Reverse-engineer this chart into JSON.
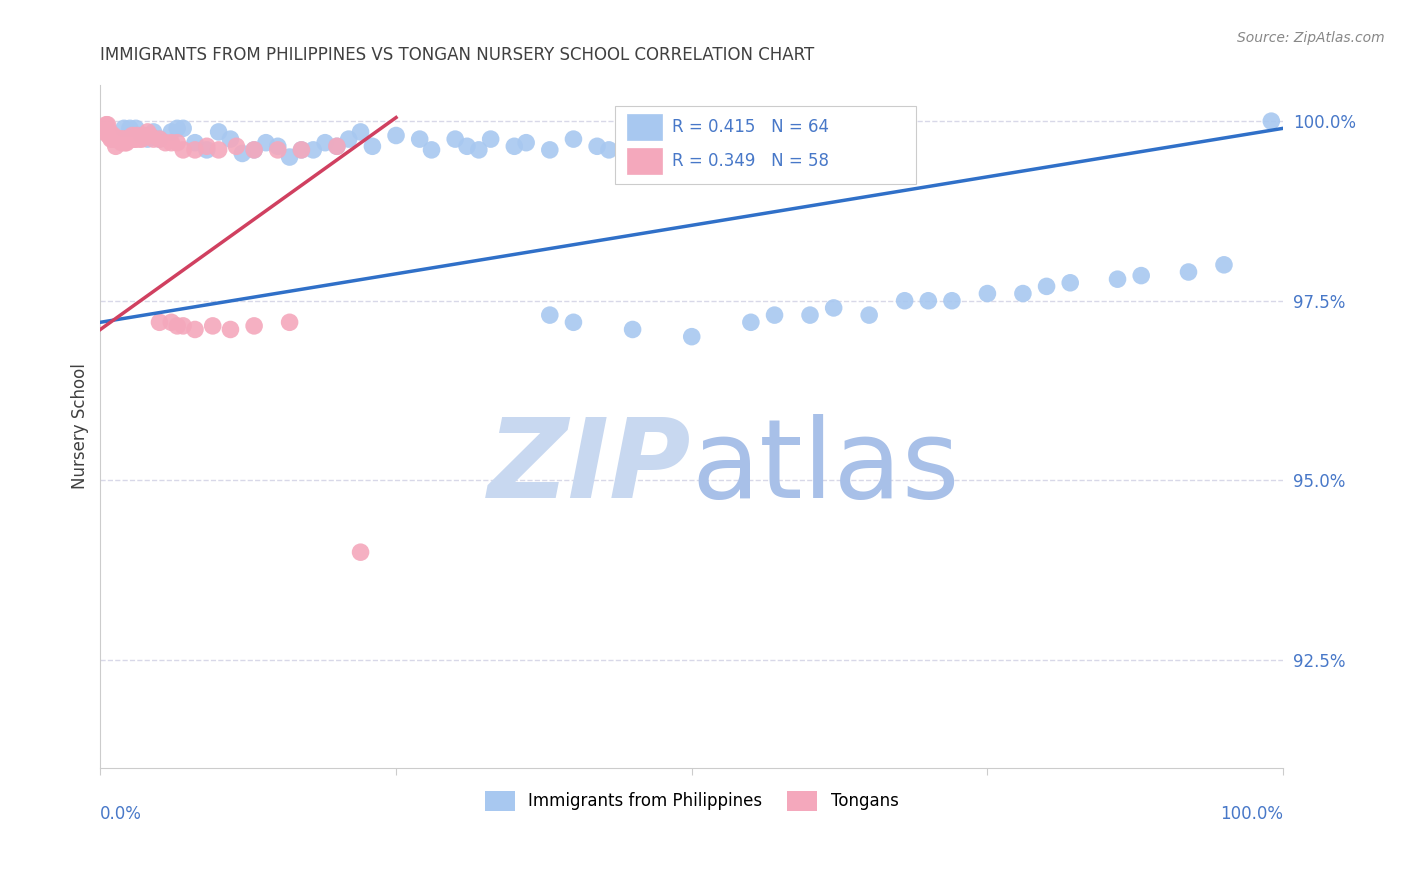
{
  "title": "IMMIGRANTS FROM PHILIPPINES VS TONGAN NURSERY SCHOOL CORRELATION CHART",
  "source": "Source: ZipAtlas.com",
  "ylabel": "Nursery School",
  "ytick_labels": [
    "100.0%",
    "97.5%",
    "95.0%",
    "92.5%"
  ],
  "ytick_values": [
    1.0,
    0.975,
    0.95,
    0.925
  ],
  "xlim": [
    0.0,
    1.0
  ],
  "ylim": [
    0.91,
    1.005
  ],
  "legend_blue_r": "R = 0.415",
  "legend_blue_n": "N = 64",
  "legend_pink_r": "R = 0.349",
  "legend_pink_n": "N = 58",
  "legend_blue_label": "Immigrants from Philippines",
  "legend_pink_label": "Tongans",
  "blue_color": "#A8C8F0",
  "pink_color": "#F4A8BC",
  "line_blue_color": "#3070C8",
  "line_pink_color": "#D04060",
  "background_color": "#ffffff",
  "grid_color": "#D8D8E8",
  "title_color": "#404040",
  "axis_color": "#4878C8",
  "watermark_zip_color": "#C8D8F0",
  "watermark_atlas_color": "#A8C0E8",
  "blue_x": [
    0.02,
    0.025,
    0.03,
    0.035,
    0.04,
    0.045,
    0.05,
    0.06,
    0.065,
    0.07,
    0.08,
    0.09,
    0.1,
    0.11,
    0.12,
    0.13,
    0.14,
    0.15,
    0.16,
    0.17,
    0.18,
    0.19,
    0.2,
    0.21,
    0.22,
    0.23,
    0.25,
    0.27,
    0.28,
    0.3,
    0.31,
    0.32,
    0.33,
    0.35,
    0.36,
    0.38,
    0.4,
    0.42,
    0.43,
    0.45,
    0.47,
    0.48,
    0.5,
    0.38,
    0.4,
    0.45,
    0.5,
    0.55,
    0.57,
    0.6,
    0.62,
    0.65,
    0.68,
    0.7,
    0.72,
    0.75,
    0.78,
    0.8,
    0.82,
    0.86,
    0.88,
    0.92,
    0.95,
    0.99
  ],
  "blue_y": [
    0.999,
    0.999,
    0.999,
    0.998,
    0.9975,
    0.9985,
    0.9975,
    0.9985,
    0.999,
    0.999,
    0.997,
    0.996,
    0.9985,
    0.9975,
    0.9955,
    0.996,
    0.997,
    0.9965,
    0.995,
    0.996,
    0.996,
    0.997,
    0.9965,
    0.9975,
    0.9985,
    0.9965,
    0.998,
    0.9975,
    0.996,
    0.9975,
    0.9965,
    0.996,
    0.9975,
    0.9965,
    0.997,
    0.996,
    0.9975,
    0.9965,
    0.996,
    0.998,
    0.996,
    0.997,
    0.9975,
    0.973,
    0.972,
    0.971,
    0.97,
    0.972,
    0.973,
    0.973,
    0.974,
    0.973,
    0.975,
    0.975,
    0.975,
    0.976,
    0.976,
    0.977,
    0.9775,
    0.978,
    0.9785,
    0.979,
    0.98,
    1.0
  ],
  "pink_x": [
    0.003,
    0.004,
    0.005,
    0.006,
    0.007,
    0.008,
    0.009,
    0.01,
    0.011,
    0.012,
    0.013,
    0.014,
    0.015,
    0.016,
    0.017,
    0.018,
    0.019,
    0.02,
    0.021,
    0.022,
    0.023,
    0.024,
    0.025,
    0.026,
    0.027,
    0.028,
    0.029,
    0.03,
    0.031,
    0.033,
    0.035,
    0.037,
    0.04,
    0.042,
    0.045,
    0.05,
    0.055,
    0.06,
    0.065,
    0.07,
    0.08,
    0.09,
    0.1,
    0.115,
    0.13,
    0.15,
    0.17,
    0.2,
    0.05,
    0.06,
    0.065,
    0.07,
    0.08,
    0.095,
    0.11,
    0.13,
    0.16,
    0.22
  ],
  "pink_y": [
    0.9985,
    0.999,
    0.9995,
    0.9995,
    0.998,
    0.9985,
    0.9975,
    0.9975,
    0.998,
    0.9975,
    0.9965,
    0.9975,
    0.9975,
    0.9975,
    0.9975,
    0.997,
    0.9975,
    0.9975,
    0.997,
    0.997,
    0.9975,
    0.9975,
    0.9975,
    0.9975,
    0.998,
    0.9975,
    0.9975,
    0.9975,
    0.998,
    0.9975,
    0.9975,
    0.998,
    0.9985,
    0.998,
    0.9975,
    0.9975,
    0.997,
    0.997,
    0.997,
    0.996,
    0.996,
    0.9965,
    0.996,
    0.9965,
    0.996,
    0.996,
    0.996,
    0.9965,
    0.972,
    0.972,
    0.9715,
    0.9715,
    0.971,
    0.9715,
    0.971,
    0.9715,
    0.972,
    0.94
  ],
  "blue_line_x0": 0.0,
  "blue_line_x1": 1.0,
  "blue_line_y0": 0.972,
  "blue_line_y1": 0.999,
  "pink_line_x0": 0.0,
  "pink_line_x1": 0.25,
  "pink_line_y0": 0.971,
  "pink_line_y1": 1.0005
}
